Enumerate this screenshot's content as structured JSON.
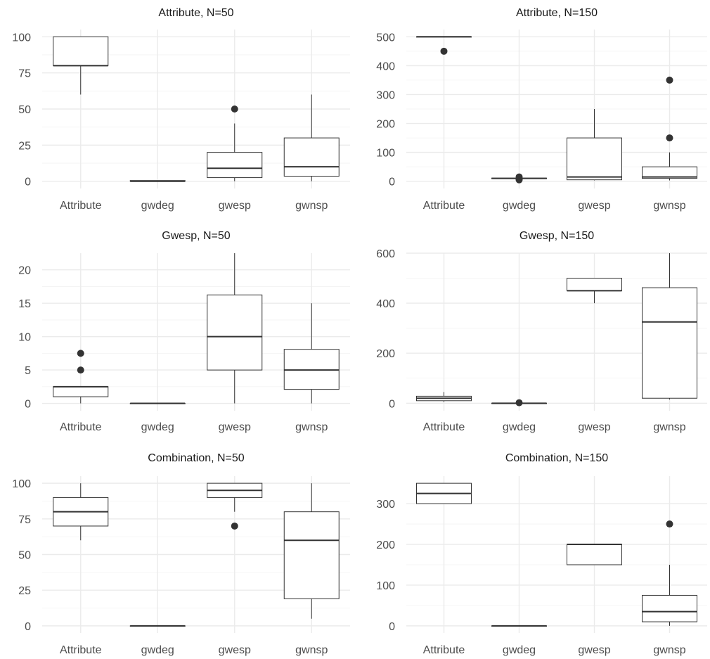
{
  "chart_data": [
    {
      "type": "boxplot",
      "title": "Attribute, N=50",
      "categories": [
        "Attribute",
        "gwdeg",
        "gwesp",
        "gwnsp"
      ],
      "ylim": [
        -5,
        105
      ],
      "yticks": [
        0,
        25,
        50,
        75,
        100
      ],
      "boxes": [
        {
          "category": "Attribute",
          "min": 60,
          "q1": 80,
          "median": 80,
          "q3": 100,
          "max": 100,
          "outliers": []
        },
        {
          "category": "gwdeg",
          "min": 0,
          "q1": 0,
          "median": 0,
          "q3": 0.5,
          "max": 0.5,
          "outliers": []
        },
        {
          "category": "gwesp",
          "min": 0,
          "q1": 2.5,
          "median": 9,
          "q3": 20,
          "max": 40,
          "outliers": [
            50
          ]
        },
        {
          "category": "gwnsp",
          "min": 0,
          "q1": 3.5,
          "median": 10,
          "q3": 30,
          "max": 60,
          "outliers": []
        }
      ]
    },
    {
      "type": "boxplot",
      "title": "Attribute, N=150",
      "categories": [
        "Attribute",
        "gwdeg",
        "gwesp",
        "gwnsp"
      ],
      "ylim": [
        -25,
        525
      ],
      "yticks": [
        0,
        100,
        200,
        300,
        400,
        500
      ],
      "boxes": [
        {
          "category": "Attribute",
          "min": 500,
          "q1": 500,
          "median": 500,
          "q3": 500,
          "max": 500,
          "outliers": [
            450
          ]
        },
        {
          "category": "gwdeg",
          "min": 8,
          "q1": 9,
          "median": 10,
          "q3": 11,
          "max": 12,
          "outliers": [
            5,
            15
          ]
        },
        {
          "category": "gwesp",
          "min": 3,
          "q1": 5,
          "median": 15,
          "q3": 150,
          "max": 250,
          "outliers": []
        },
        {
          "category": "gwnsp",
          "min": 3,
          "q1": 10,
          "median": 15,
          "q3": 50,
          "max": 100,
          "outliers": [
            150,
            350
          ]
        }
      ]
    },
    {
      "type": "boxplot",
      "title": "Gwesp, N=50",
      "categories": [
        "Attribute",
        "gwdeg",
        "gwesp",
        "gwnsp"
      ],
      "ylim": [
        -1.1,
        22.5
      ],
      "yticks": [
        0,
        5,
        10,
        15,
        20
      ],
      "boxes": [
        {
          "category": "Attribute",
          "min": 0,
          "q1": 1,
          "median": 2.5,
          "q3": 2.5,
          "max": 2.5,
          "outliers": [
            5,
            7.5
          ]
        },
        {
          "category": "gwdeg",
          "min": 0,
          "q1": 0,
          "median": 0,
          "q3": 0,
          "max": 0,
          "outliers": []
        },
        {
          "category": "gwesp",
          "min": 0,
          "q1": 5,
          "median": 10,
          "q3": 16.25,
          "max": 22.5,
          "outliers": []
        },
        {
          "category": "gwnsp",
          "min": 0,
          "q1": 2.1,
          "median": 5,
          "q3": 8.1,
          "max": 15,
          "outliers": []
        }
      ]
    },
    {
      "type": "boxplot",
      "title": "Gwesp, N=150",
      "categories": [
        "Attribute",
        "gwdeg",
        "gwesp",
        "gwnsp"
      ],
      "ylim": [
        -30,
        600
      ],
      "yticks": [
        0,
        200,
        400,
        600
      ],
      "boxes": [
        {
          "category": "Attribute",
          "min": 5,
          "q1": 10,
          "median": 20,
          "q3": 28,
          "max": 45,
          "outliers": []
        },
        {
          "category": "gwdeg",
          "min": 0,
          "q1": 0,
          "median": 0,
          "q3": 0,
          "max": 0,
          "outliers": [
            2
          ]
        },
        {
          "category": "gwesp",
          "min": 400,
          "q1": 450,
          "median": 450,
          "q3": 500,
          "max": 500,
          "outliers": []
        },
        {
          "category": "gwnsp",
          "min": 15,
          "q1": 20,
          "median": 325,
          "q3": 462,
          "max": 600,
          "outliers": []
        }
      ]
    },
    {
      "type": "boxplot",
      "title": "Combination, N=50",
      "categories": [
        "Attribute",
        "gwdeg",
        "gwesp",
        "gwnsp"
      ],
      "ylim": [
        -5,
        105
      ],
      "yticks": [
        0,
        25,
        50,
        75,
        100
      ],
      "boxes": [
        {
          "category": "Attribute",
          "min": 60,
          "q1": 70,
          "median": 80,
          "q3": 90,
          "max": 100,
          "outliers": []
        },
        {
          "category": "gwdeg",
          "min": 0,
          "q1": 0,
          "median": 0,
          "q3": 0,
          "max": 0,
          "outliers": []
        },
        {
          "category": "gwesp",
          "min": 80,
          "q1": 90,
          "median": 95,
          "q3": 100,
          "max": 100,
          "outliers": [
            70
          ]
        },
        {
          "category": "gwnsp",
          "min": 5,
          "q1": 19,
          "median": 60,
          "q3": 80,
          "max": 100,
          "outliers": []
        }
      ]
    },
    {
      "type": "boxplot",
      "title": "Combination, N=150",
      "categories": [
        "Attribute",
        "gwdeg",
        "gwesp",
        "gwnsp"
      ],
      "ylim": [
        -17.5,
        367.5
      ],
      "yticks": [
        0,
        100,
        200,
        300
      ],
      "boxes": [
        {
          "category": "Attribute",
          "min": 300,
          "q1": 300,
          "median": 325,
          "q3": 350,
          "max": 350,
          "outliers": []
        },
        {
          "category": "gwdeg",
          "min": 0,
          "q1": 0,
          "median": 0,
          "q3": 0,
          "max": 0,
          "outliers": []
        },
        {
          "category": "gwesp",
          "min": 150,
          "q1": 150,
          "median": 200,
          "q3": 200,
          "max": 200,
          "outliers": []
        },
        {
          "category": "gwnsp",
          "min": 0,
          "q1": 10,
          "median": 35,
          "q3": 75,
          "max": 150,
          "outliers": [
            250
          ]
        }
      ]
    }
  ]
}
